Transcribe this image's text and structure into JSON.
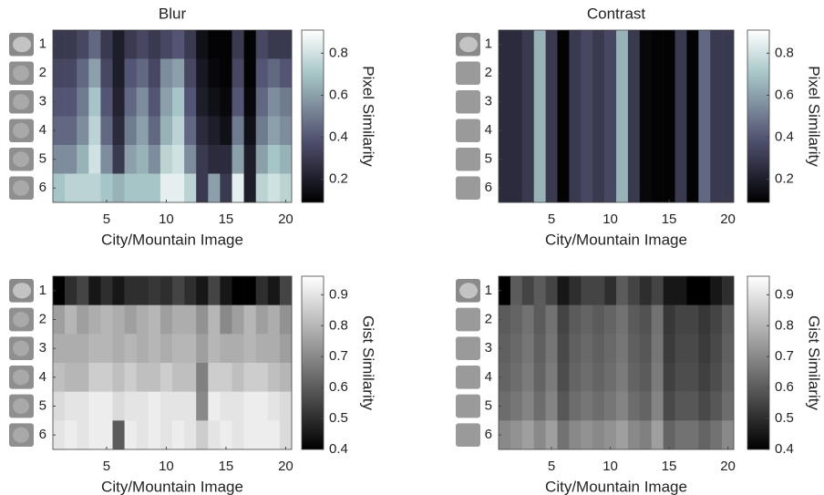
{
  "chart_data": [
    {
      "type": "heatmap",
      "title": "Blur",
      "x_label": "City/Mountain Image",
      "colorbar_label": "Pixel Similarity",
      "colormap": "bone",
      "x": [
        1,
        2,
        3,
        4,
        5,
        6,
        7,
        8,
        9,
        10,
        11,
        12,
        13,
        14,
        15,
        16,
        17,
        18,
        19,
        20
      ],
      "y": [
        1,
        2,
        3,
        4,
        5,
        6
      ],
      "xlim": [
        0.5,
        20.5
      ],
      "ylim": [
        0.5,
        6.5
      ],
      "y_reversed": true,
      "xticks": [
        5,
        10,
        15,
        20
      ],
      "yticks": [
        1,
        2,
        3,
        4,
        5,
        6
      ],
      "clim": [
        0.09,
        0.91
      ],
      "cticks": [
        0.2,
        0.4,
        0.6,
        0.8
      ],
      "z": [
        [
          0.3,
          0.3,
          0.35,
          0.45,
          0.3,
          0.2,
          0.3,
          0.35,
          0.3,
          0.35,
          0.4,
          0.3,
          0.15,
          0.1,
          0.1,
          0.3,
          0.1,
          0.35,
          0.3,
          0.3
        ],
        [
          0.35,
          0.35,
          0.45,
          0.6,
          0.35,
          0.2,
          0.4,
          0.45,
          0.35,
          0.55,
          0.6,
          0.35,
          0.18,
          0.12,
          0.1,
          0.35,
          0.1,
          0.4,
          0.45,
          0.4
        ],
        [
          0.4,
          0.4,
          0.5,
          0.7,
          0.4,
          0.22,
          0.45,
          0.55,
          0.4,
          0.6,
          0.7,
          0.4,
          0.2,
          0.15,
          0.12,
          0.4,
          0.12,
          0.45,
          0.55,
          0.5
        ],
        [
          0.45,
          0.45,
          0.55,
          0.75,
          0.45,
          0.25,
          0.5,
          0.6,
          0.45,
          0.65,
          0.75,
          0.45,
          0.25,
          0.2,
          0.15,
          0.5,
          0.15,
          0.5,
          0.6,
          0.55
        ],
        [
          0.55,
          0.55,
          0.65,
          0.8,
          0.55,
          0.3,
          0.6,
          0.65,
          0.55,
          0.75,
          0.8,
          0.55,
          0.3,
          0.25,
          0.25,
          0.6,
          0.2,
          0.6,
          0.7,
          0.65
        ],
        [
          0.7,
          0.75,
          0.75,
          0.75,
          0.7,
          0.65,
          0.7,
          0.7,
          0.7,
          0.85,
          0.85,
          0.75,
          0.3,
          0.6,
          0.3,
          0.85,
          0.2,
          0.75,
          0.8,
          0.75
        ]
      ]
    },
    {
      "type": "heatmap",
      "title": "Contrast",
      "x_label": "City/Mountain Image",
      "colorbar_label": "Pixel Similarity",
      "colormap": "bone",
      "x": [
        1,
        2,
        3,
        4,
        5,
        6,
        7,
        8,
        9,
        10,
        11,
        12,
        13,
        14,
        15,
        16,
        17,
        18,
        19,
        20
      ],
      "y": [
        1,
        2,
        3,
        4,
        5,
        6
      ],
      "xlim": [
        0.5,
        20.5
      ],
      "ylim": [
        0.5,
        6.5
      ],
      "y_reversed": true,
      "xticks": [
        5,
        10,
        15,
        20
      ],
      "yticks": [
        1,
        2,
        3,
        4,
        5,
        6
      ],
      "clim": [
        0.09,
        0.91
      ],
      "cticks": [
        0.2,
        0.4,
        0.6,
        0.8
      ],
      "z": [
        [
          0.25,
          0.25,
          0.3,
          0.65,
          0.3,
          0.1,
          0.3,
          0.35,
          0.3,
          0.35,
          0.65,
          0.3,
          0.12,
          0.1,
          0.1,
          0.3,
          0.1,
          0.45,
          0.3,
          0.3
        ],
        [
          0.25,
          0.25,
          0.3,
          0.65,
          0.3,
          0.1,
          0.3,
          0.35,
          0.3,
          0.35,
          0.65,
          0.3,
          0.12,
          0.1,
          0.1,
          0.3,
          0.1,
          0.45,
          0.3,
          0.3
        ],
        [
          0.25,
          0.25,
          0.3,
          0.65,
          0.3,
          0.1,
          0.3,
          0.35,
          0.3,
          0.35,
          0.65,
          0.3,
          0.12,
          0.1,
          0.1,
          0.3,
          0.1,
          0.45,
          0.3,
          0.3
        ],
        [
          0.25,
          0.25,
          0.3,
          0.65,
          0.3,
          0.1,
          0.3,
          0.35,
          0.3,
          0.35,
          0.65,
          0.3,
          0.12,
          0.1,
          0.1,
          0.3,
          0.1,
          0.45,
          0.3,
          0.3
        ],
        [
          0.25,
          0.25,
          0.3,
          0.65,
          0.3,
          0.1,
          0.3,
          0.35,
          0.3,
          0.35,
          0.65,
          0.3,
          0.12,
          0.1,
          0.1,
          0.3,
          0.1,
          0.45,
          0.3,
          0.3
        ],
        [
          0.25,
          0.25,
          0.3,
          0.65,
          0.3,
          0.1,
          0.3,
          0.35,
          0.3,
          0.35,
          0.65,
          0.3,
          0.12,
          0.1,
          0.1,
          0.3,
          0.1,
          0.45,
          0.3,
          0.3
        ]
      ]
    },
    {
      "type": "heatmap",
      "x_label": "City/Mountain Image",
      "colorbar_label": "Gist Similarity",
      "colormap": "gray",
      "x": [
        1,
        2,
        3,
        4,
        5,
        6,
        7,
        8,
        9,
        10,
        11,
        12,
        13,
        14,
        15,
        16,
        17,
        18,
        19,
        20
      ],
      "y": [
        1,
        2,
        3,
        4,
        5,
        6
      ],
      "xlim": [
        0.5,
        20.5
      ],
      "ylim": [
        0.5,
        6.5
      ],
      "y_reversed": true,
      "xticks": [
        5,
        10,
        15,
        20
      ],
      "yticks": [
        1,
        2,
        3,
        4,
        5,
        6
      ],
      "clim": [
        0.4,
        0.96
      ],
      "cticks": [
        0.4,
        0.5,
        0.6,
        0.7,
        0.8,
        0.9
      ],
      "z": [
        [
          0.4,
          0.5,
          0.55,
          0.45,
          0.5,
          0.45,
          0.5,
          0.5,
          0.52,
          0.5,
          0.55,
          0.5,
          0.45,
          0.55,
          0.45,
          0.4,
          0.4,
          0.5,
          0.45,
          0.55
        ],
        [
          0.75,
          0.8,
          0.75,
          0.78,
          0.8,
          0.78,
          0.75,
          0.78,
          0.8,
          0.75,
          0.78,
          0.78,
          0.72,
          0.8,
          0.7,
          0.75,
          0.8,
          0.75,
          0.78,
          0.72
        ],
        [
          0.78,
          0.78,
          0.78,
          0.8,
          0.8,
          0.78,
          0.8,
          0.78,
          0.8,
          0.78,
          0.8,
          0.8,
          0.75,
          0.8,
          0.78,
          0.78,
          0.8,
          0.78,
          0.78,
          0.75
        ],
        [
          0.82,
          0.8,
          0.8,
          0.85,
          0.85,
          0.82,
          0.85,
          0.82,
          0.82,
          0.85,
          0.82,
          0.82,
          0.68,
          0.85,
          0.85,
          0.82,
          0.85,
          0.85,
          0.82,
          0.8
        ],
        [
          0.88,
          0.9,
          0.9,
          0.92,
          0.92,
          0.88,
          0.9,
          0.9,
          0.92,
          0.9,
          0.9,
          0.9,
          0.7,
          0.92,
          0.9,
          0.9,
          0.92,
          0.92,
          0.9,
          0.88
        ],
        [
          0.9,
          0.92,
          0.9,
          0.92,
          0.92,
          0.6,
          0.92,
          0.9,
          0.92,
          0.9,
          0.92,
          0.9,
          0.85,
          0.9,
          0.92,
          0.9,
          0.92,
          0.92,
          0.92,
          0.88
        ]
      ]
    },
    {
      "type": "heatmap",
      "x_label": "City/Mountain Image",
      "colorbar_label": "Gist Similarity",
      "colormap": "gray",
      "x": [
        1,
        2,
        3,
        4,
        5,
        6,
        7,
        8,
        9,
        10,
        11,
        12,
        13,
        14,
        15,
        16,
        17,
        18,
        19,
        20
      ],
      "y": [
        1,
        2,
        3,
        4,
        5,
        6
      ],
      "xlim": [
        0.5,
        20.5
      ],
      "ylim": [
        0.5,
        6.5
      ],
      "y_reversed": true,
      "xticks": [
        5,
        10,
        15,
        20
      ],
      "yticks": [
        1,
        2,
        3,
        4,
        5,
        6
      ],
      "clim": [
        0.4,
        0.96
      ],
      "cticks": [
        0.4,
        0.5,
        0.6,
        0.7,
        0.8,
        0.9
      ],
      "z": [
        [
          0.4,
          0.6,
          0.55,
          0.6,
          0.55,
          0.45,
          0.5,
          0.55,
          0.55,
          0.5,
          0.6,
          0.55,
          0.5,
          0.55,
          0.45,
          0.45,
          0.4,
          0.4,
          0.45,
          0.5
        ],
        [
          0.6,
          0.62,
          0.65,
          0.6,
          0.65,
          0.55,
          0.6,
          0.62,
          0.6,
          0.62,
          0.65,
          0.6,
          0.58,
          0.65,
          0.52,
          0.55,
          0.55,
          0.52,
          0.55,
          0.6
        ],
        [
          0.61,
          0.63,
          0.66,
          0.61,
          0.66,
          0.56,
          0.61,
          0.63,
          0.61,
          0.63,
          0.66,
          0.61,
          0.59,
          0.66,
          0.53,
          0.56,
          0.56,
          0.53,
          0.56,
          0.61
        ],
        [
          0.62,
          0.64,
          0.67,
          0.62,
          0.67,
          0.57,
          0.62,
          0.64,
          0.62,
          0.64,
          0.67,
          0.62,
          0.6,
          0.67,
          0.54,
          0.57,
          0.57,
          0.54,
          0.57,
          0.62
        ],
        [
          0.64,
          0.66,
          0.69,
          0.64,
          0.69,
          0.59,
          0.64,
          0.66,
          0.64,
          0.66,
          0.69,
          0.64,
          0.62,
          0.69,
          0.56,
          0.59,
          0.59,
          0.56,
          0.59,
          0.64
        ],
        [
          0.7,
          0.72,
          0.75,
          0.7,
          0.75,
          0.65,
          0.7,
          0.72,
          0.7,
          0.72,
          0.75,
          0.7,
          0.68,
          0.75,
          0.62,
          0.65,
          0.65,
          0.62,
          0.65,
          0.7
        ]
      ]
    }
  ]
}
